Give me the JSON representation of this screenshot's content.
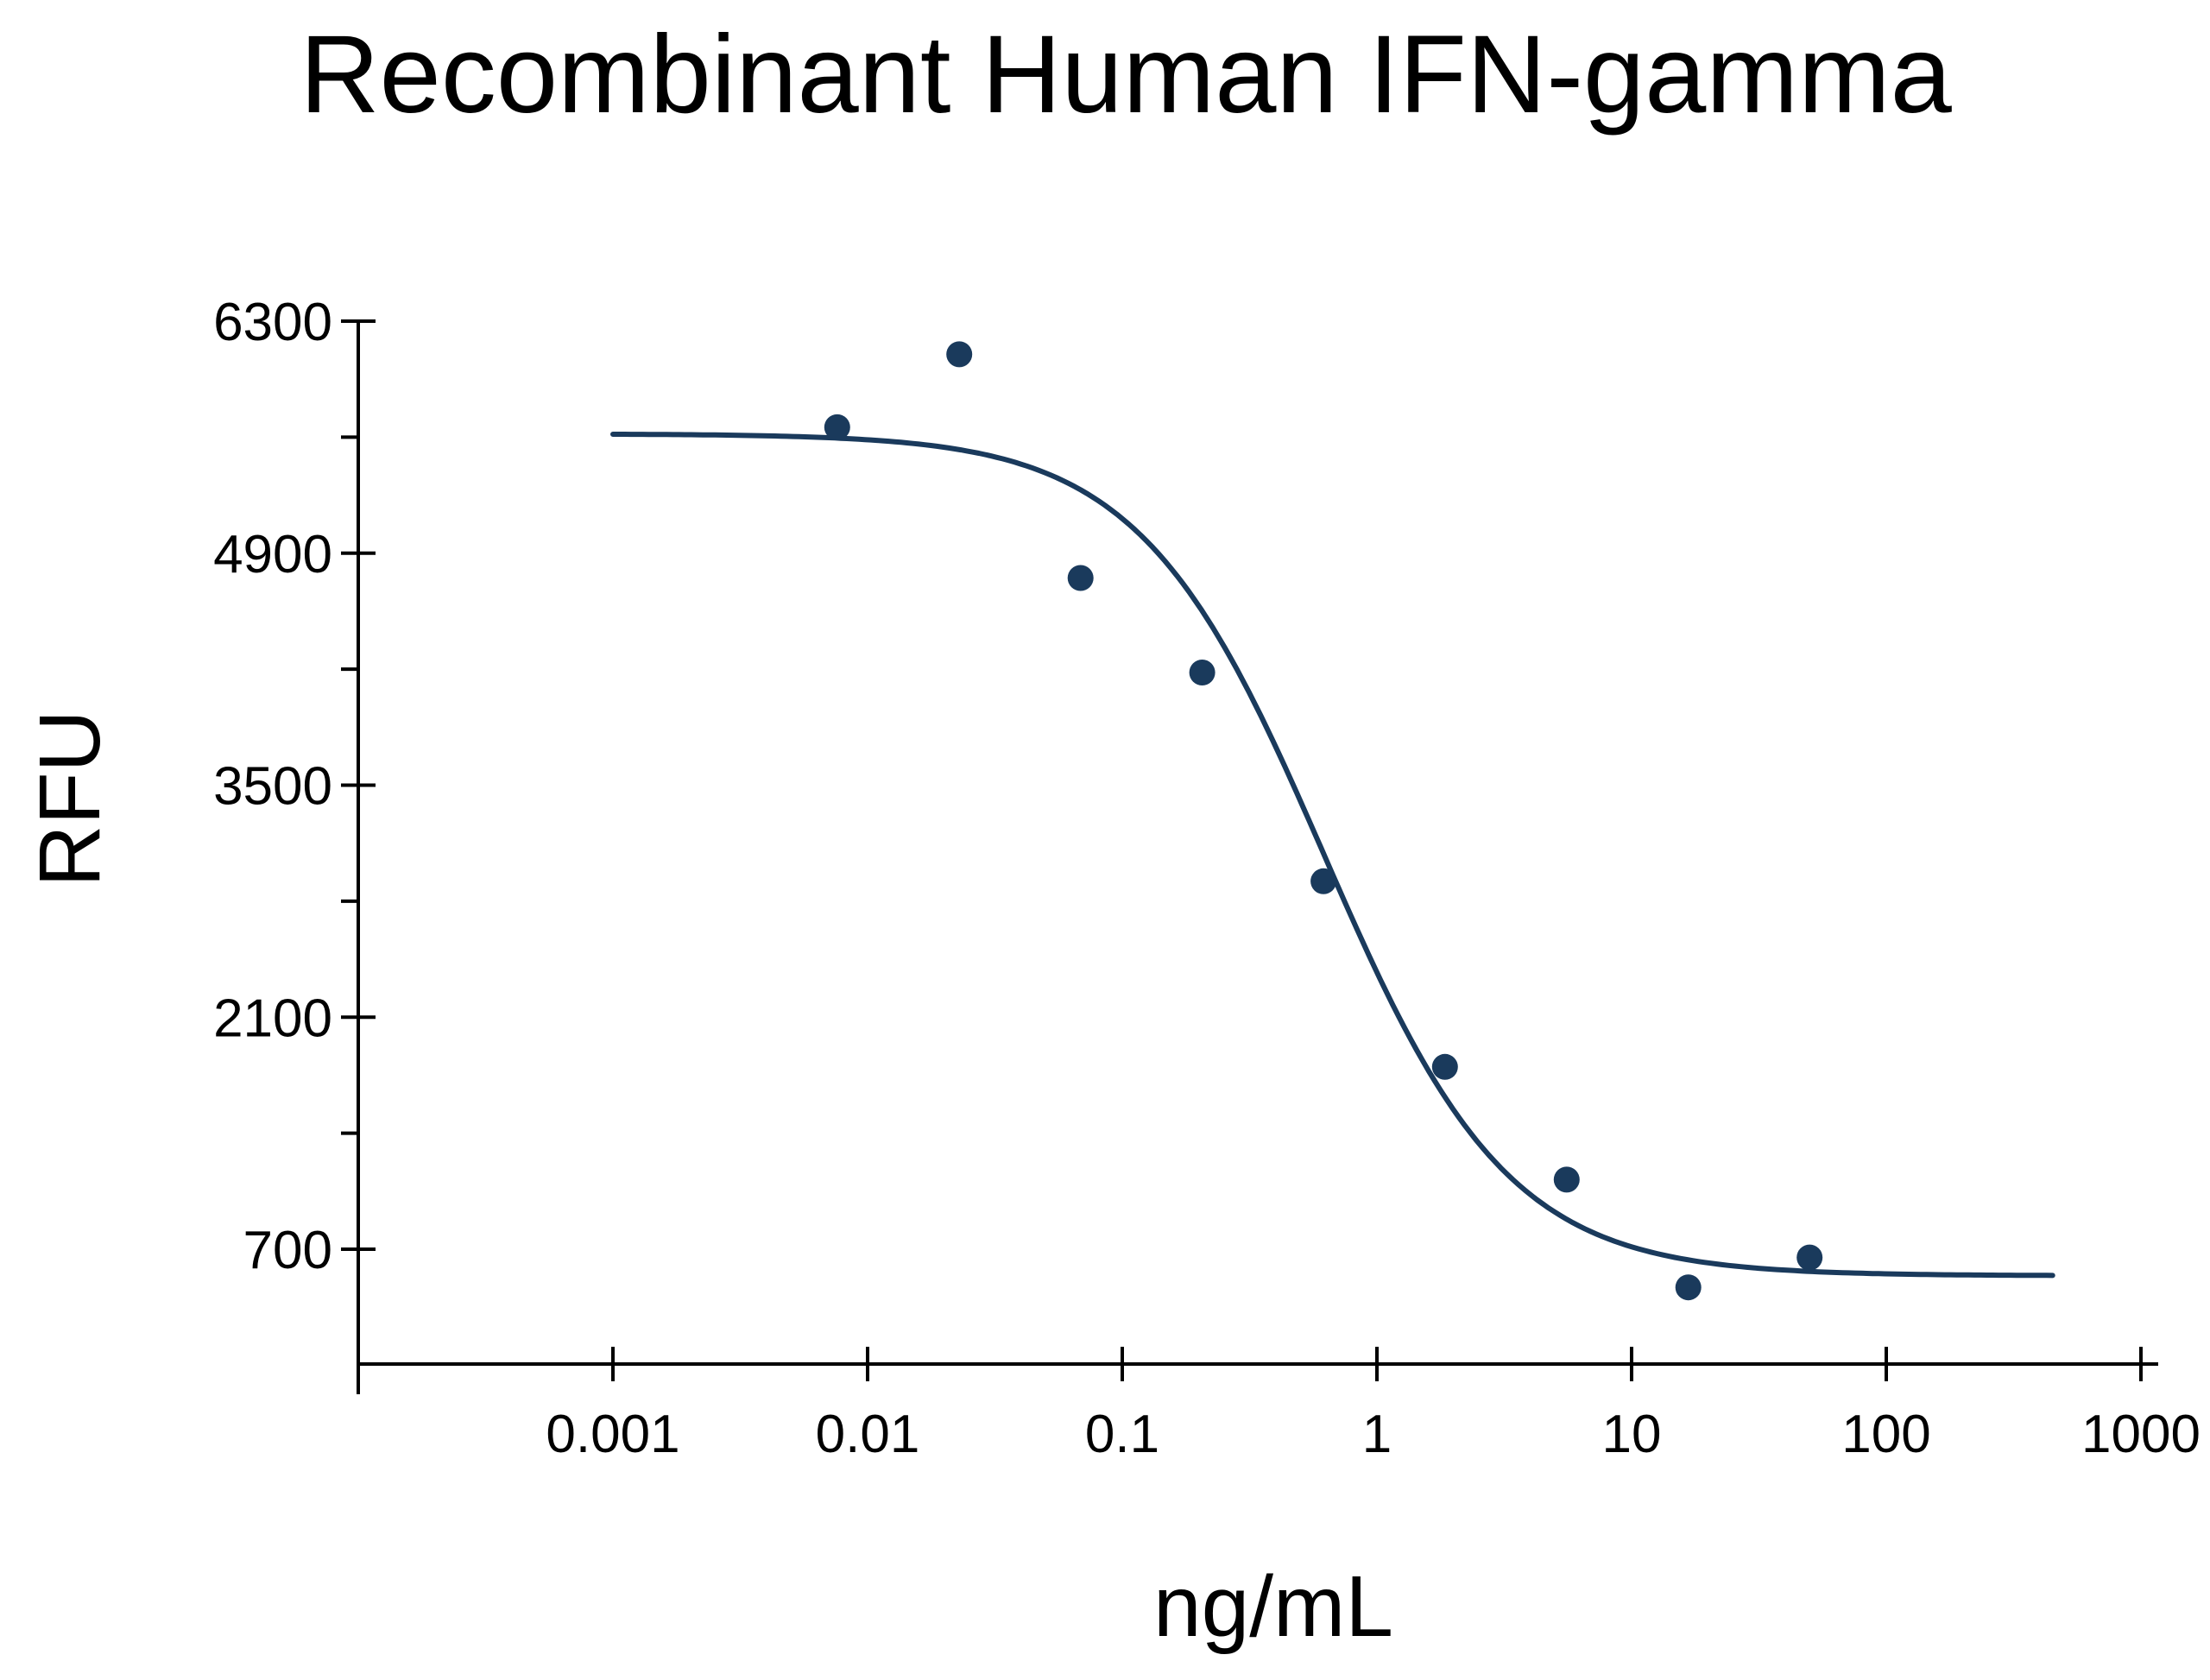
{
  "chart_data": {
    "type": "scatter",
    "title": "Recombinant Human IFN-gamma",
    "xlabel": "ng/mL",
    "ylabel": "RFU",
    "x_scale": "log",
    "xlim": [
      0.0003,
      1800
    ],
    "ylim": [
      0,
      6300
    ],
    "x_ticks": [
      {
        "value": 0.001,
        "label": "0.001"
      },
      {
        "value": 0.01,
        "label": "0.01"
      },
      {
        "value": 0.1,
        "label": "0.1"
      },
      {
        "value": 1,
        "label": "1"
      },
      {
        "value": 10,
        "label": "10"
      },
      {
        "value": 100,
        "label": "100"
      },
      {
        "value": 1000,
        "label": "1000"
      }
    ],
    "y_major_ticks": [
      {
        "value": 700,
        "label": "700"
      },
      {
        "value": 2100,
        "label": "2100"
      },
      {
        "value": 3500,
        "label": "3500"
      },
      {
        "value": 4900,
        "label": "4900"
      },
      {
        "value": 6300,
        "label": "6300"
      }
    ],
    "y_minor_ticks": [
      1400,
      2800,
      4200,
      5600
    ],
    "grid": false,
    "legend": "none",
    "series": [
      {
        "points": [
          {
            "x": 0.0076,
            "y": 5660
          },
          {
            "x": 0.0229,
            "y": 6100
          },
          {
            "x": 0.0686,
            "y": 4750
          },
          {
            "x": 0.206,
            "y": 4180
          },
          {
            "x": 0.617,
            "y": 2920
          },
          {
            "x": 1.85,
            "y": 1800
          },
          {
            "x": 5.56,
            "y": 1120
          },
          {
            "x": 16.7,
            "y": 470
          },
          {
            "x": 50,
            "y": 650
          }
        ],
        "fit": {
          "model": "4PL",
          "x_range": [
            0.001,
            450
          ],
          "top": 5620,
          "bottom": 540,
          "ec50": 0.62,
          "hill": 1.2
        }
      }
    ],
    "colors": {
      "series": "#1a3a5c",
      "axis": "#000000"
    }
  }
}
